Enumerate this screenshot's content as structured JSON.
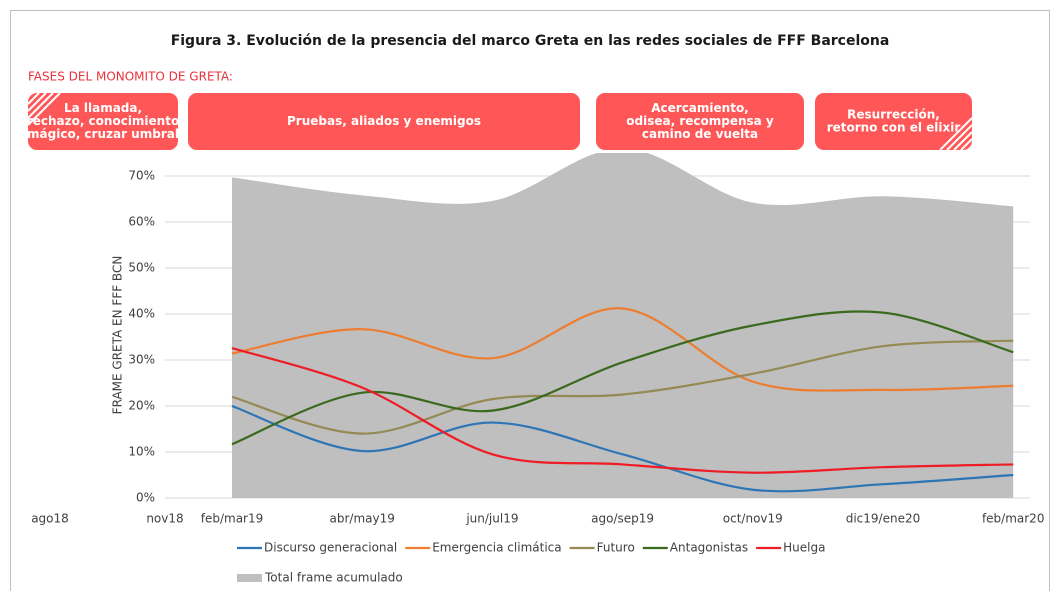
{
  "chart_data": {
    "type": "line",
    "title": "Figura 3. Evolución de la presencia del marco Greta en las redes sociales de FFF Barcelona",
    "phases_title": "FASES DEL MONOMITO DE GRETA:",
    "phases": [
      [
        "La llamada,",
        "rechazo, conocimiento",
        "mágico, cruzar umbral"
      ],
      [
        "Pruebas, aliados y enemigos"
      ],
      [
        "Acercamiento,",
        "odisea, recompensa y",
        "camino de vuelta"
      ],
      [
        "Resurrección,",
        "retorno con el elixir"
      ]
    ],
    "y_label": "FRAME GRETA EN FFF BCN",
    "categories": [
      "ago18",
      "nov18",
      "feb/mar19",
      "abr/may19",
      "jun/jul19",
      "ago/sep19",
      "oct/nov19",
      "dic19/ene20",
      "feb/mar20"
    ],
    "ylim": [
      0,
      75
    ],
    "yticks": [
      {
        "value": 0,
        "label": "0%"
      },
      {
        "value": 10,
        "label": "10%"
      },
      {
        "value": 20,
        "label": "20%"
      },
      {
        "value": 30,
        "label": "30%"
      },
      {
        "value": 40,
        "label": "40%"
      },
      {
        "value": 50,
        "label": "50%"
      },
      {
        "value": 60,
        "label": "60%"
      },
      {
        "value": 70,
        "label": "70%"
      }
    ],
    "grid": true,
    "legend": "bottom",
    "series": [
      {
        "name": "Total frame acumulado",
        "type": "area",
        "color": "#bfbfbf",
        "values": [
          null,
          null,
          69.7,
          65.8,
          64.6,
          76,
          64.2,
          65.6,
          63.4
        ]
      },
      {
        "name": "Discurso generacional",
        "color": "#2e75b6",
        "values": [
          null,
          null,
          20,
          10.2,
          16.4,
          9.5,
          1.8,
          3,
          5
        ]
      },
      {
        "name": "Emergencia climática",
        "color": "#ed7d31",
        "values": [
          null,
          null,
          31.4,
          36.7,
          30.4,
          41.2,
          25.3,
          23.5,
          24.4
        ]
      },
      {
        "name": "Futuro",
        "color": "#948a54",
        "values": [
          null,
          null,
          22,
          14,
          21.5,
          22.5,
          27,
          33,
          34.2
        ]
      },
      {
        "name": "Antagonistas",
        "color": "#3a6a1e",
        "values": [
          null,
          null,
          11.7,
          22.9,
          19,
          29.5,
          37.5,
          40.3,
          31.7
        ]
      },
      {
        "name": "Huelga",
        "color": "#ee1c25",
        "values": [
          null,
          null,
          32.6,
          24,
          9.5,
          7.3,
          5.5,
          6.7,
          7.3
        ]
      }
    ]
  }
}
